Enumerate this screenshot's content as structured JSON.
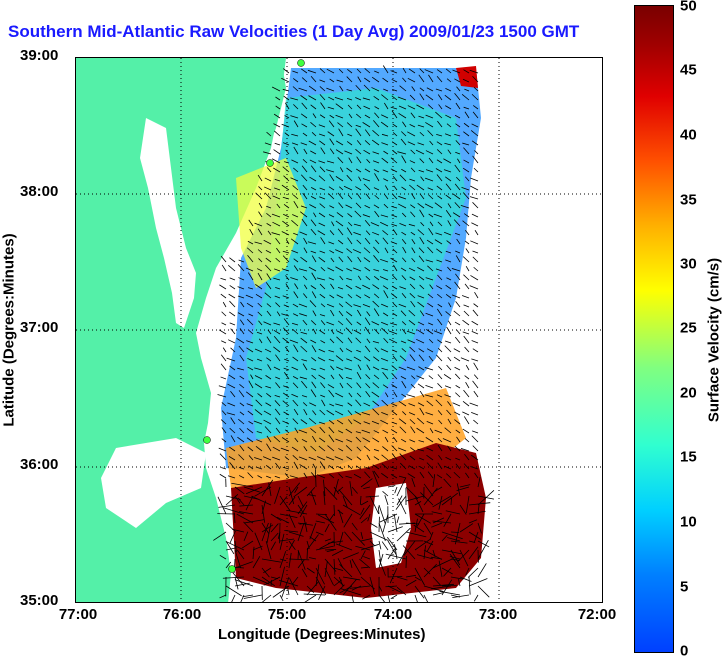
{
  "title": "Southern Mid-Atlantic Raw Velocities (1 Day Avg) 2009/01/23 1500 GMT",
  "axes": {
    "xlabel": "Longitude (Degrees:Minutes)",
    "ylabel": "Latitude (Degrees:Minutes)",
    "xticks": [
      "77:00",
      "76:00",
      "75:00",
      "74:00",
      "73:00",
      "72:00"
    ],
    "yticks": [
      "39:00",
      "38:00",
      "37:00",
      "36:00",
      "35:00"
    ]
  },
  "colorbar": {
    "label": "Surface Velocity (cm/s)",
    "ticks": [
      "50",
      "45",
      "40",
      "35",
      "30",
      "25",
      "20",
      "15",
      "10",
      "5",
      "0"
    ],
    "range": [
      0,
      50
    ]
  },
  "colors": {
    "land": "#54f0a8",
    "title": "#1a1aff"
  },
  "stations": [
    "station-marker",
    "station-marker",
    "station-marker",
    "station-marker"
  ]
}
